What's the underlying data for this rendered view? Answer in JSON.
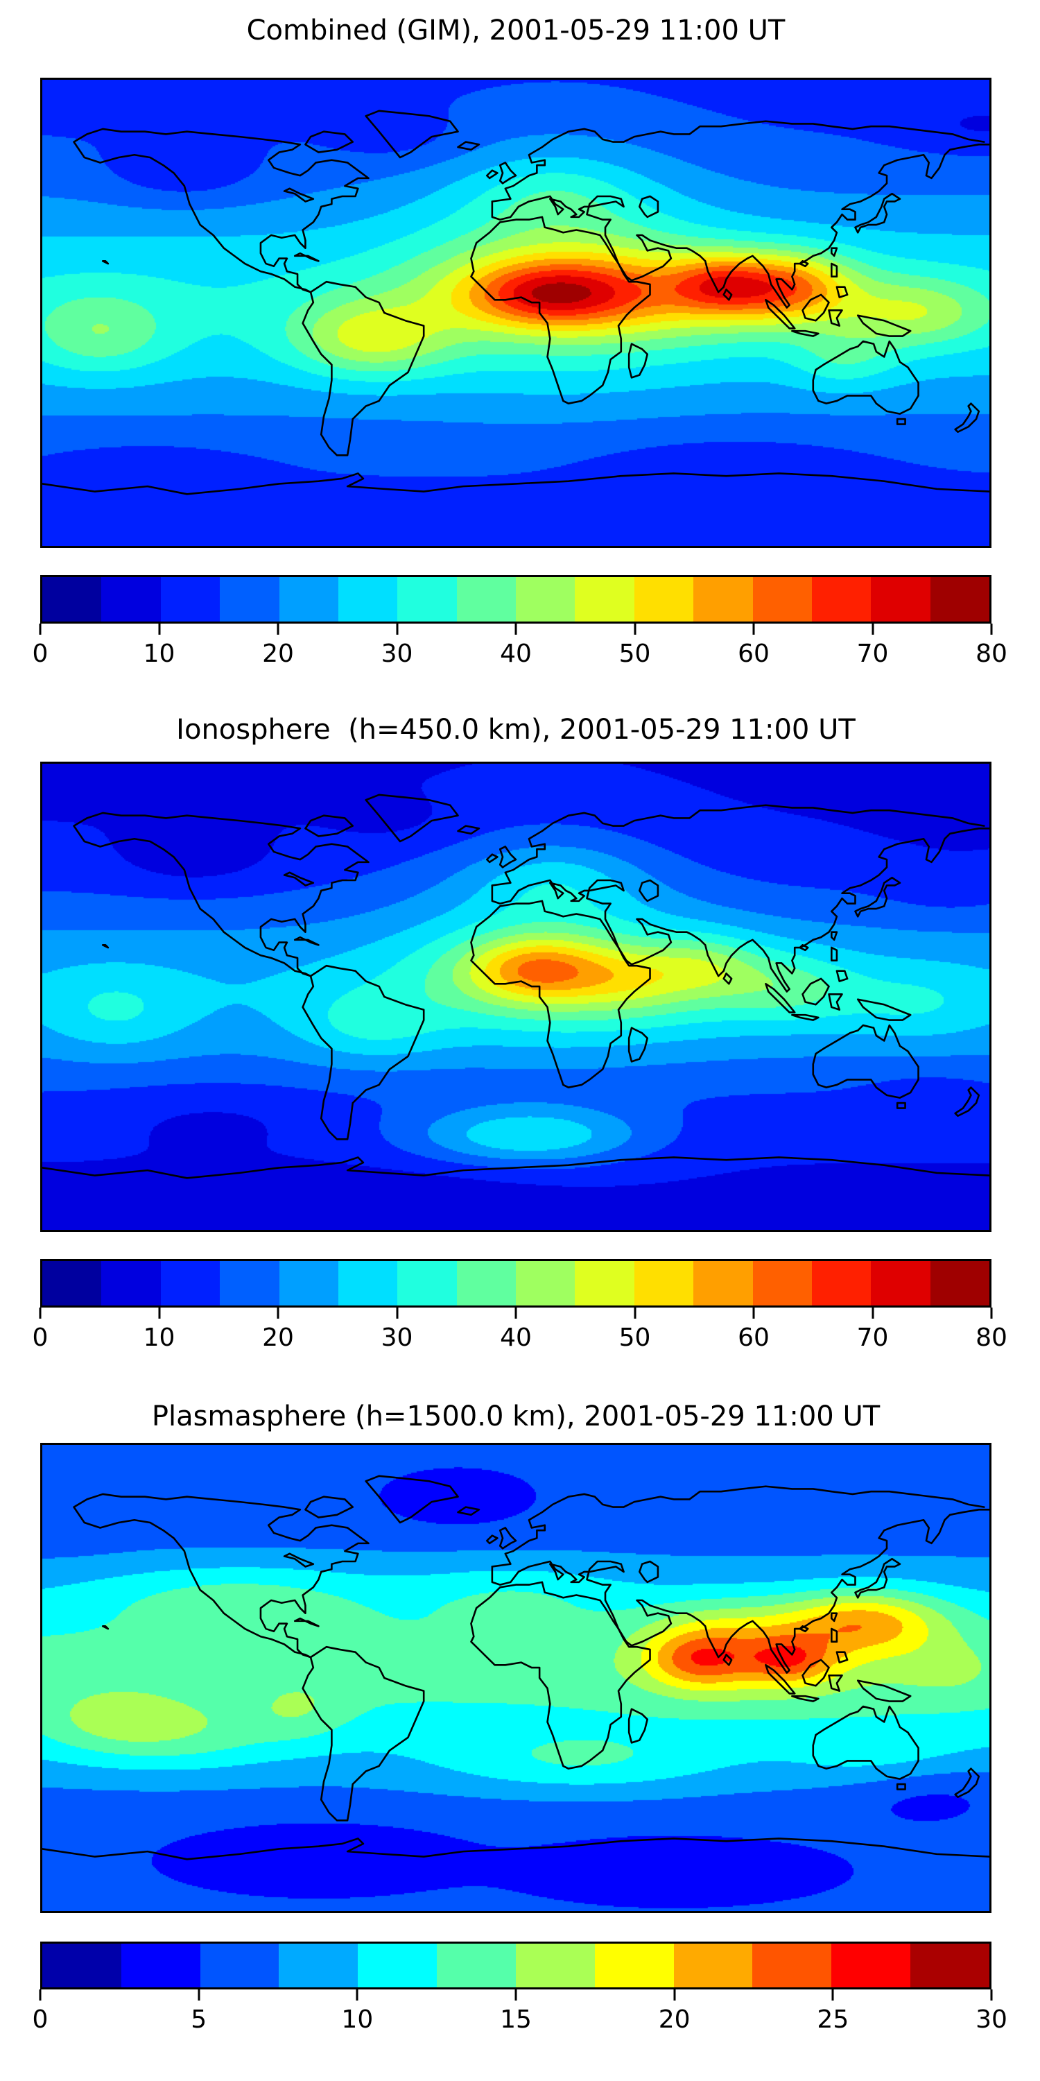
{
  "figure": {
    "background": "#ffffff",
    "n_panels": 3,
    "colormap": "jet",
    "map_border_color": "#000000",
    "coastline_color": "#000000"
  },
  "chart_data": [
    {
      "type": "filled_contour_map",
      "title": "Combined (GIM), 2001-05-29 11:00 UT",
      "projection": "equirectangular",
      "lon_range": [
        -180,
        180
      ],
      "lat_range": [
        -90,
        90
      ],
      "colormap": "jet",
      "levels": {
        "vmin": 0,
        "vmax": 80,
        "step": 5,
        "n_segments": 16
      },
      "colorbar_ticks": [
        0,
        10,
        20,
        30,
        40,
        50,
        60,
        70,
        80
      ],
      "max_estimate": {
        "value": 78,
        "lon": 12,
        "lat": 7
      },
      "min_estimate": {
        "value": 8,
        "lon": -126,
        "lat": 53
      },
      "field_model": {
        "base": {
          "offset": 13,
          "amp": 17,
          "lat0": 3,
          "sigma": 45
        },
        "gaussians": [
          [
            45,
            8,
            68,
            17,
            22
          ],
          [
            12,
            7,
            30,
            12,
            20
          ],
          [
            77,
            11,
            18,
            11,
            16
          ],
          [
            103,
            10,
            24,
            13,
            24
          ],
          [
            152,
            0,
            28,
            13,
            14
          ],
          [
            -158,
            -8,
            26,
            16,
            11
          ],
          [
            -55,
            -10,
            30,
            15,
            18
          ],
          [
            125,
            -18,
            20,
            12,
            8
          ],
          [
            15,
            25,
            55,
            45,
            12
          ],
          [
            15,
            46,
            30,
            14,
            6
          ],
          [
            -126,
            53,
            30,
            12,
            -6
          ],
          [
            -45,
            68,
            25,
            10,
            -4
          ],
          [
            178,
            72,
            30,
            10,
            -5
          ],
          [
            80,
            -55,
            60,
            12,
            -3
          ],
          [
            -140,
            -60,
            40,
            10,
            -4
          ]
        ]
      }
    },
    {
      "type": "filled_contour_map",
      "title": "Ionosphere  (h=450.0 km), 2001-05-29 11:00 UT",
      "projection": "equirectangular",
      "lon_range": [
        -180,
        180
      ],
      "lat_range": [
        -90,
        90
      ],
      "colormap": "jet",
      "levels": {
        "vmin": 0,
        "vmax": 80,
        "step": 5,
        "n_segments": 16
      },
      "colorbar_ticks": [
        0,
        10,
        20,
        30,
        40,
        50,
        60,
        70,
        80
      ],
      "max_estimate": {
        "value": 64,
        "lon": 8,
        "lat": 11
      },
      "min_estimate": {
        "value": 7,
        "lon": -122,
        "lat": 52
      },
      "field_model": {
        "base": {
          "offset": 9,
          "amp": 15.5,
          "lat0": 2,
          "sigma": 40
        },
        "gaussians": [
          [
            35,
            6,
            70,
            18,
            13
          ],
          [
            8,
            11,
            26,
            12,
            20
          ],
          [
            43,
            7,
            20,
            11,
            6
          ],
          [
            72,
            12,
            22,
            12,
            10
          ],
          [
            105,
            3,
            24,
            13,
            8
          ],
          [
            152,
            -3,
            30,
            14,
            6
          ],
          [
            -152,
            -6,
            26,
            16,
            7
          ],
          [
            -55,
            -12,
            28,
            14,
            8
          ],
          [
            5,
            -54,
            45,
            12,
            18
          ],
          [
            12,
            28,
            55,
            42,
            10
          ],
          [
            15,
            45,
            30,
            14,
            7
          ],
          [
            -122,
            52,
            30,
            12,
            -4.5
          ],
          [
            175,
            68,
            32,
            10,
            -3
          ],
          [
            -45,
            68,
            24,
            9,
            -2.5
          ],
          [
            -115,
            -45,
            40,
            12,
            -3
          ],
          [
            -30,
            -72,
            50,
            10,
            -2
          ],
          [
            165,
            42,
            25,
            12,
            -3
          ],
          [
            158,
            -38,
            25,
            10,
            -3
          ]
        ]
      }
    },
    {
      "type": "filled_contour_map",
      "title": "Plasmasphere (h=1500.0 km), 2001-05-29 11:00 UT",
      "projection": "equirectangular",
      "lon_range": [
        -180,
        180
      ],
      "lat_range": [
        -90,
        90
      ],
      "colormap": "jet",
      "levels": {
        "vmin": 0,
        "vmax": 30,
        "step": 2.5,
        "n_segments": 12
      },
      "colorbar_ticks": [
        0,
        5,
        10,
        15,
        20,
        25,
        30
      ],
      "max_estimate": {
        "value": 26,
        "lon": 70,
        "lat": 7
      },
      "min_estimate": {
        "value": 3.5,
        "lon": -22,
        "lat": 66
      },
      "field_model": {
        "base": {
          "offset": 5,
          "amp": 8.2,
          "lat0": 3,
          "sigma": 40
        },
        "gaussians": [
          [
            95,
            8,
            50,
            18,
            4.5
          ],
          [
            70,
            7,
            20,
            11,
            8
          ],
          [
            104,
            7,
            16,
            9,
            7
          ],
          [
            133,
            22,
            30,
            12,
            9
          ],
          [
            80,
            20,
            30,
            12,
            3
          ],
          [
            165,
            3,
            20,
            12,
            2
          ],
          [
            -105,
            32,
            55,
            13,
            3.8
          ],
          [
            0,
            33,
            40,
            12,
            2.8
          ],
          [
            -135,
            -22,
            45,
            14,
            4.5
          ],
          [
            -152,
            -14,
            22,
            10,
            2.5
          ],
          [
            25,
            -33,
            55,
            12,
            4
          ],
          [
            142,
            -33,
            35,
            12,
            3
          ],
          [
            -82,
            -12,
            18,
            12,
            2.5
          ],
          [
            -75,
            -66,
            45,
            10,
            -2.5
          ],
          [
            60,
            -70,
            50,
            10,
            -1.5
          ],
          [
            -22,
            66,
            28,
            10,
            -1.8
          ],
          [
            -175,
            58,
            25,
            10,
            -1
          ],
          [
            155,
            -42,
            35,
            13,
            -3
          ]
        ]
      }
    }
  ]
}
